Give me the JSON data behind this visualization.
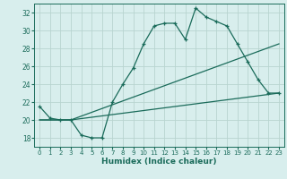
{
  "xlabel": "Humidex (Indice chaleur)",
  "background_color": "#d8eeed",
  "grid_color": "#b8d4d0",
  "line_color": "#1a6b5a",
  "xlim": [
    -0.5,
    23.5
  ],
  "ylim": [
    17,
    33
  ],
  "yticks": [
    18,
    20,
    22,
    24,
    26,
    28,
    30,
    32
  ],
  "xticks": [
    0,
    1,
    2,
    3,
    4,
    5,
    6,
    7,
    8,
    9,
    10,
    11,
    12,
    13,
    14,
    15,
    16,
    17,
    18,
    19,
    20,
    21,
    22,
    23
  ],
  "series": [
    {
      "x": [
        0,
        1,
        2,
        3,
        4,
        5,
        6,
        7,
        8,
        9,
        10,
        11,
        12,
        13,
        14,
        15,
        16,
        17,
        18,
        19,
        20,
        21,
        22,
        23
      ],
      "y": [
        21.5,
        20.2,
        20.0,
        20.0,
        18.3,
        18.0,
        18.0,
        22.0,
        24.0,
        25.8,
        28.5,
        30.5,
        30.8,
        30.8,
        29.0,
        32.5,
        31.5,
        31.0,
        30.5,
        28.5,
        26.5,
        24.5,
        23.0,
        23.0
      ]
    },
    {
      "x": [
        0,
        3,
        23
      ],
      "y": [
        20.0,
        20.0,
        28.5
      ]
    },
    {
      "x": [
        0,
        3,
        23
      ],
      "y": [
        20.0,
        20.0,
        23.0
      ]
    }
  ]
}
